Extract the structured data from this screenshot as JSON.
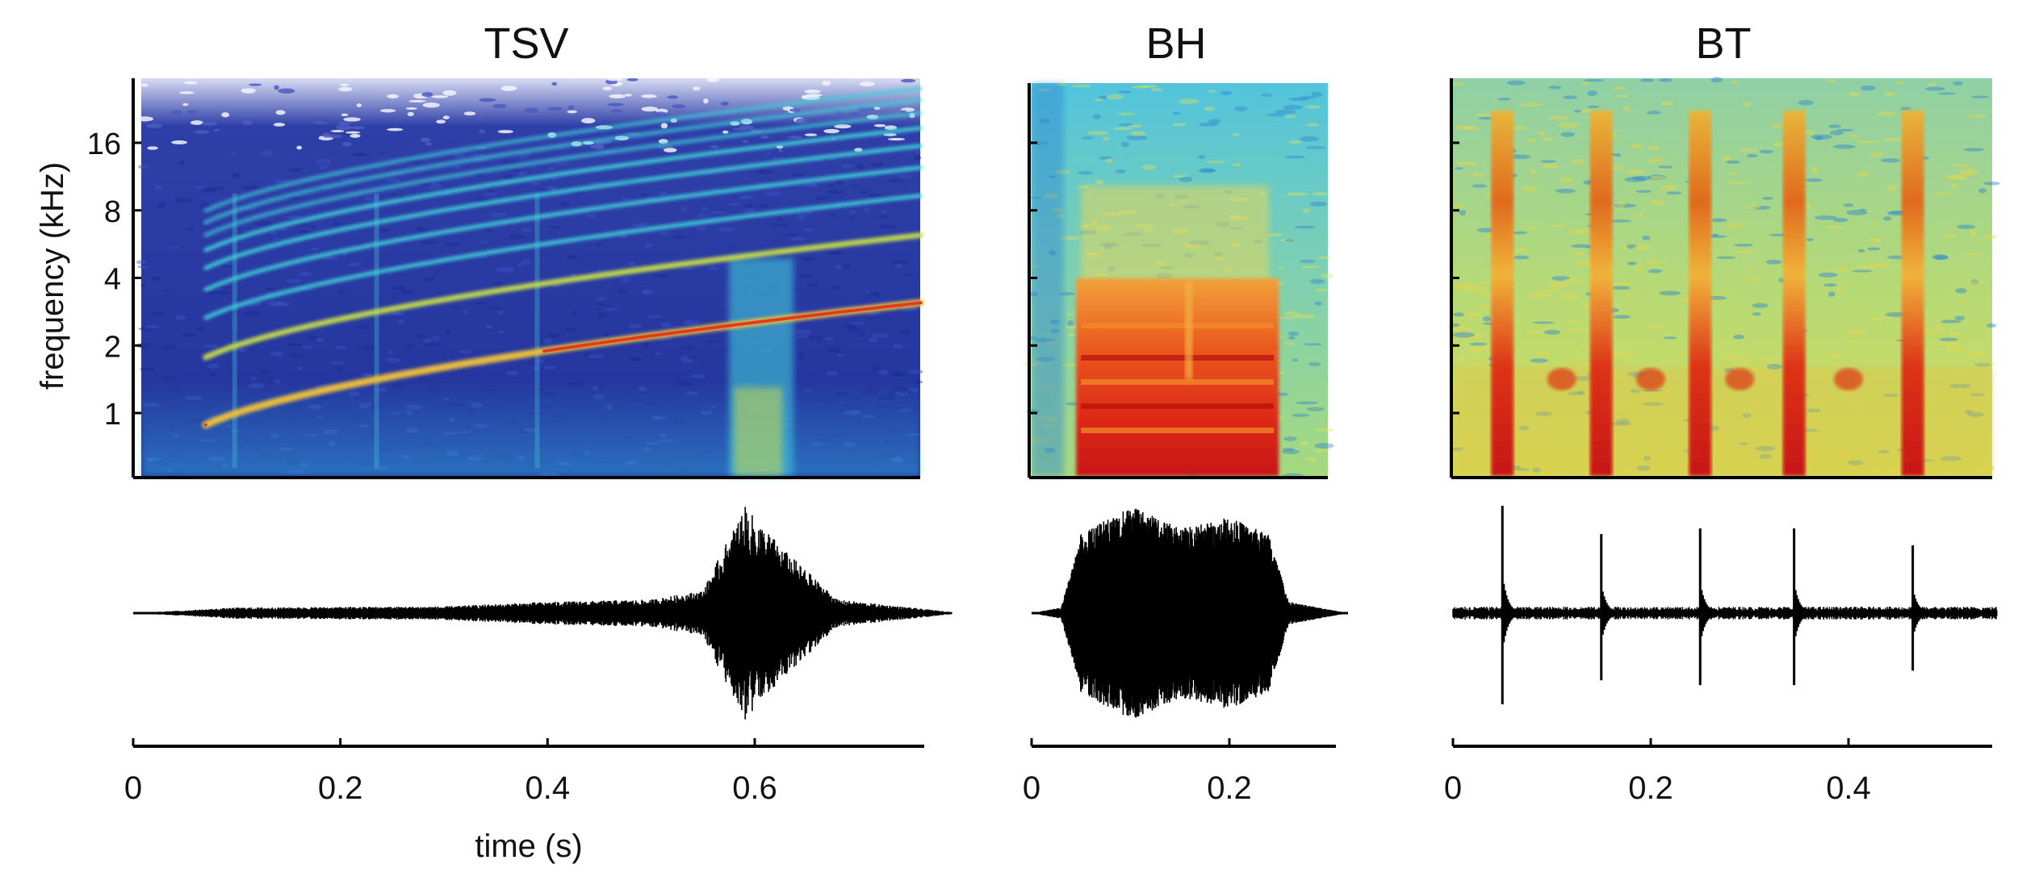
{
  "chart_data": [
    {
      "id": "tsv",
      "type": "heatmap",
      "title": "TSV",
      "ylabel": "frequency (kHz)",
      "xlabel": "time (s)",
      "y_scale": "log",
      "y_ticks": [
        1,
        2,
        4,
        8,
        16
      ],
      "y_tick_labels": [
        "1",
        "2",
        "4",
        "8",
        "16"
      ],
      "ylim": [
        0.5,
        30
      ],
      "x_ticks": [
        0,
        0.2,
        0.4,
        0.6
      ],
      "x_tick_labels": [
        "0",
        "0.2",
        "0.4",
        "0.6"
      ],
      "xlim": [
        0,
        0.8
      ],
      "sound_span": [
        0.05,
        0.76
      ],
      "harmonics": {
        "fundamental_start_khz": 0.75,
        "fundamental_end_khz": 3.1,
        "count": 9
      },
      "waveform": {
        "envelope": [
          [
            0.0,
            0.0
          ],
          [
            0.04,
            0.02
          ],
          [
            0.1,
            0.05
          ],
          [
            0.3,
            0.06
          ],
          [
            0.4,
            0.1
          ],
          [
            0.5,
            0.12
          ],
          [
            0.55,
            0.2
          ],
          [
            0.59,
            0.95
          ],
          [
            0.63,
            0.55
          ],
          [
            0.68,
            0.12
          ],
          [
            0.75,
            0.05
          ],
          [
            0.8,
            0.0
          ]
        ]
      }
    },
    {
      "id": "bh",
      "type": "heatmap",
      "title": "BH",
      "y_scale": "log",
      "ylim": [
        0.5,
        30
      ],
      "x_ticks": [
        0,
        0.2
      ],
      "x_tick_labels": [
        "0",
        "0.2"
      ],
      "xlim": [
        0,
        0.32
      ],
      "waveform": {
        "envelope": [
          [
            0.0,
            0.0
          ],
          [
            0.03,
            0.05
          ],
          [
            0.05,
            0.7
          ],
          [
            0.1,
            0.95
          ],
          [
            0.15,
            0.75
          ],
          [
            0.2,
            0.85
          ],
          [
            0.24,
            0.7
          ],
          [
            0.26,
            0.1
          ],
          [
            0.32,
            0.0
          ]
        ]
      }
    },
    {
      "id": "bt",
      "type": "heatmap",
      "title": "BT",
      "y_scale": "log",
      "ylim": [
        0.5,
        30
      ],
      "x_ticks": [
        0,
        0.2,
        0.4
      ],
      "x_tick_labels": [
        "0",
        "0.2",
        "0.4"
      ],
      "xlim": [
        0,
        0.55
      ],
      "clicks": [
        0.05,
        0.15,
        0.25,
        0.345,
        0.465
      ],
      "waveform": {
        "click_peaks": [
          0.95,
          0.7,
          0.75,
          0.75,
          0.6
        ]
      }
    }
  ]
}
